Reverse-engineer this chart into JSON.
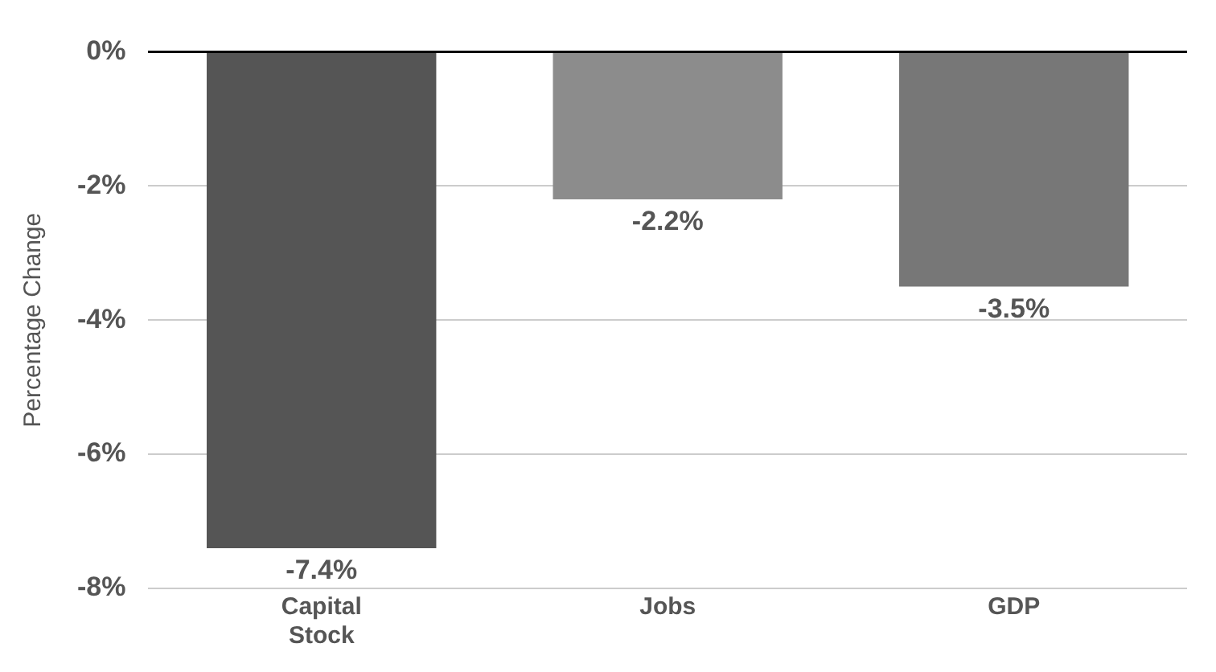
{
  "chart_data": {
    "type": "bar",
    "ylabel": "Percentage Change",
    "categories": [
      "Capital Stock",
      "Jobs",
      "GDP"
    ],
    "values": [
      -7.4,
      -2.2,
      -3.5
    ],
    "colors": [
      "#555555",
      "#8c8c8c",
      "#777777"
    ],
    "value_labels": [
      "-7.4%",
      "-2.2%",
      "-3.5%"
    ],
    "ylim": [
      -8,
      0
    ],
    "yticks": [
      {
        "value": 0,
        "label": "0%"
      },
      {
        "value": -2,
        "label": "-2%"
      },
      {
        "value": -4,
        "label": "-4%"
      },
      {
        "value": -6,
        "label": "-6%"
      },
      {
        "value": -8,
        "label": "-8%"
      }
    ],
    "grid": "y",
    "legend": false
  }
}
